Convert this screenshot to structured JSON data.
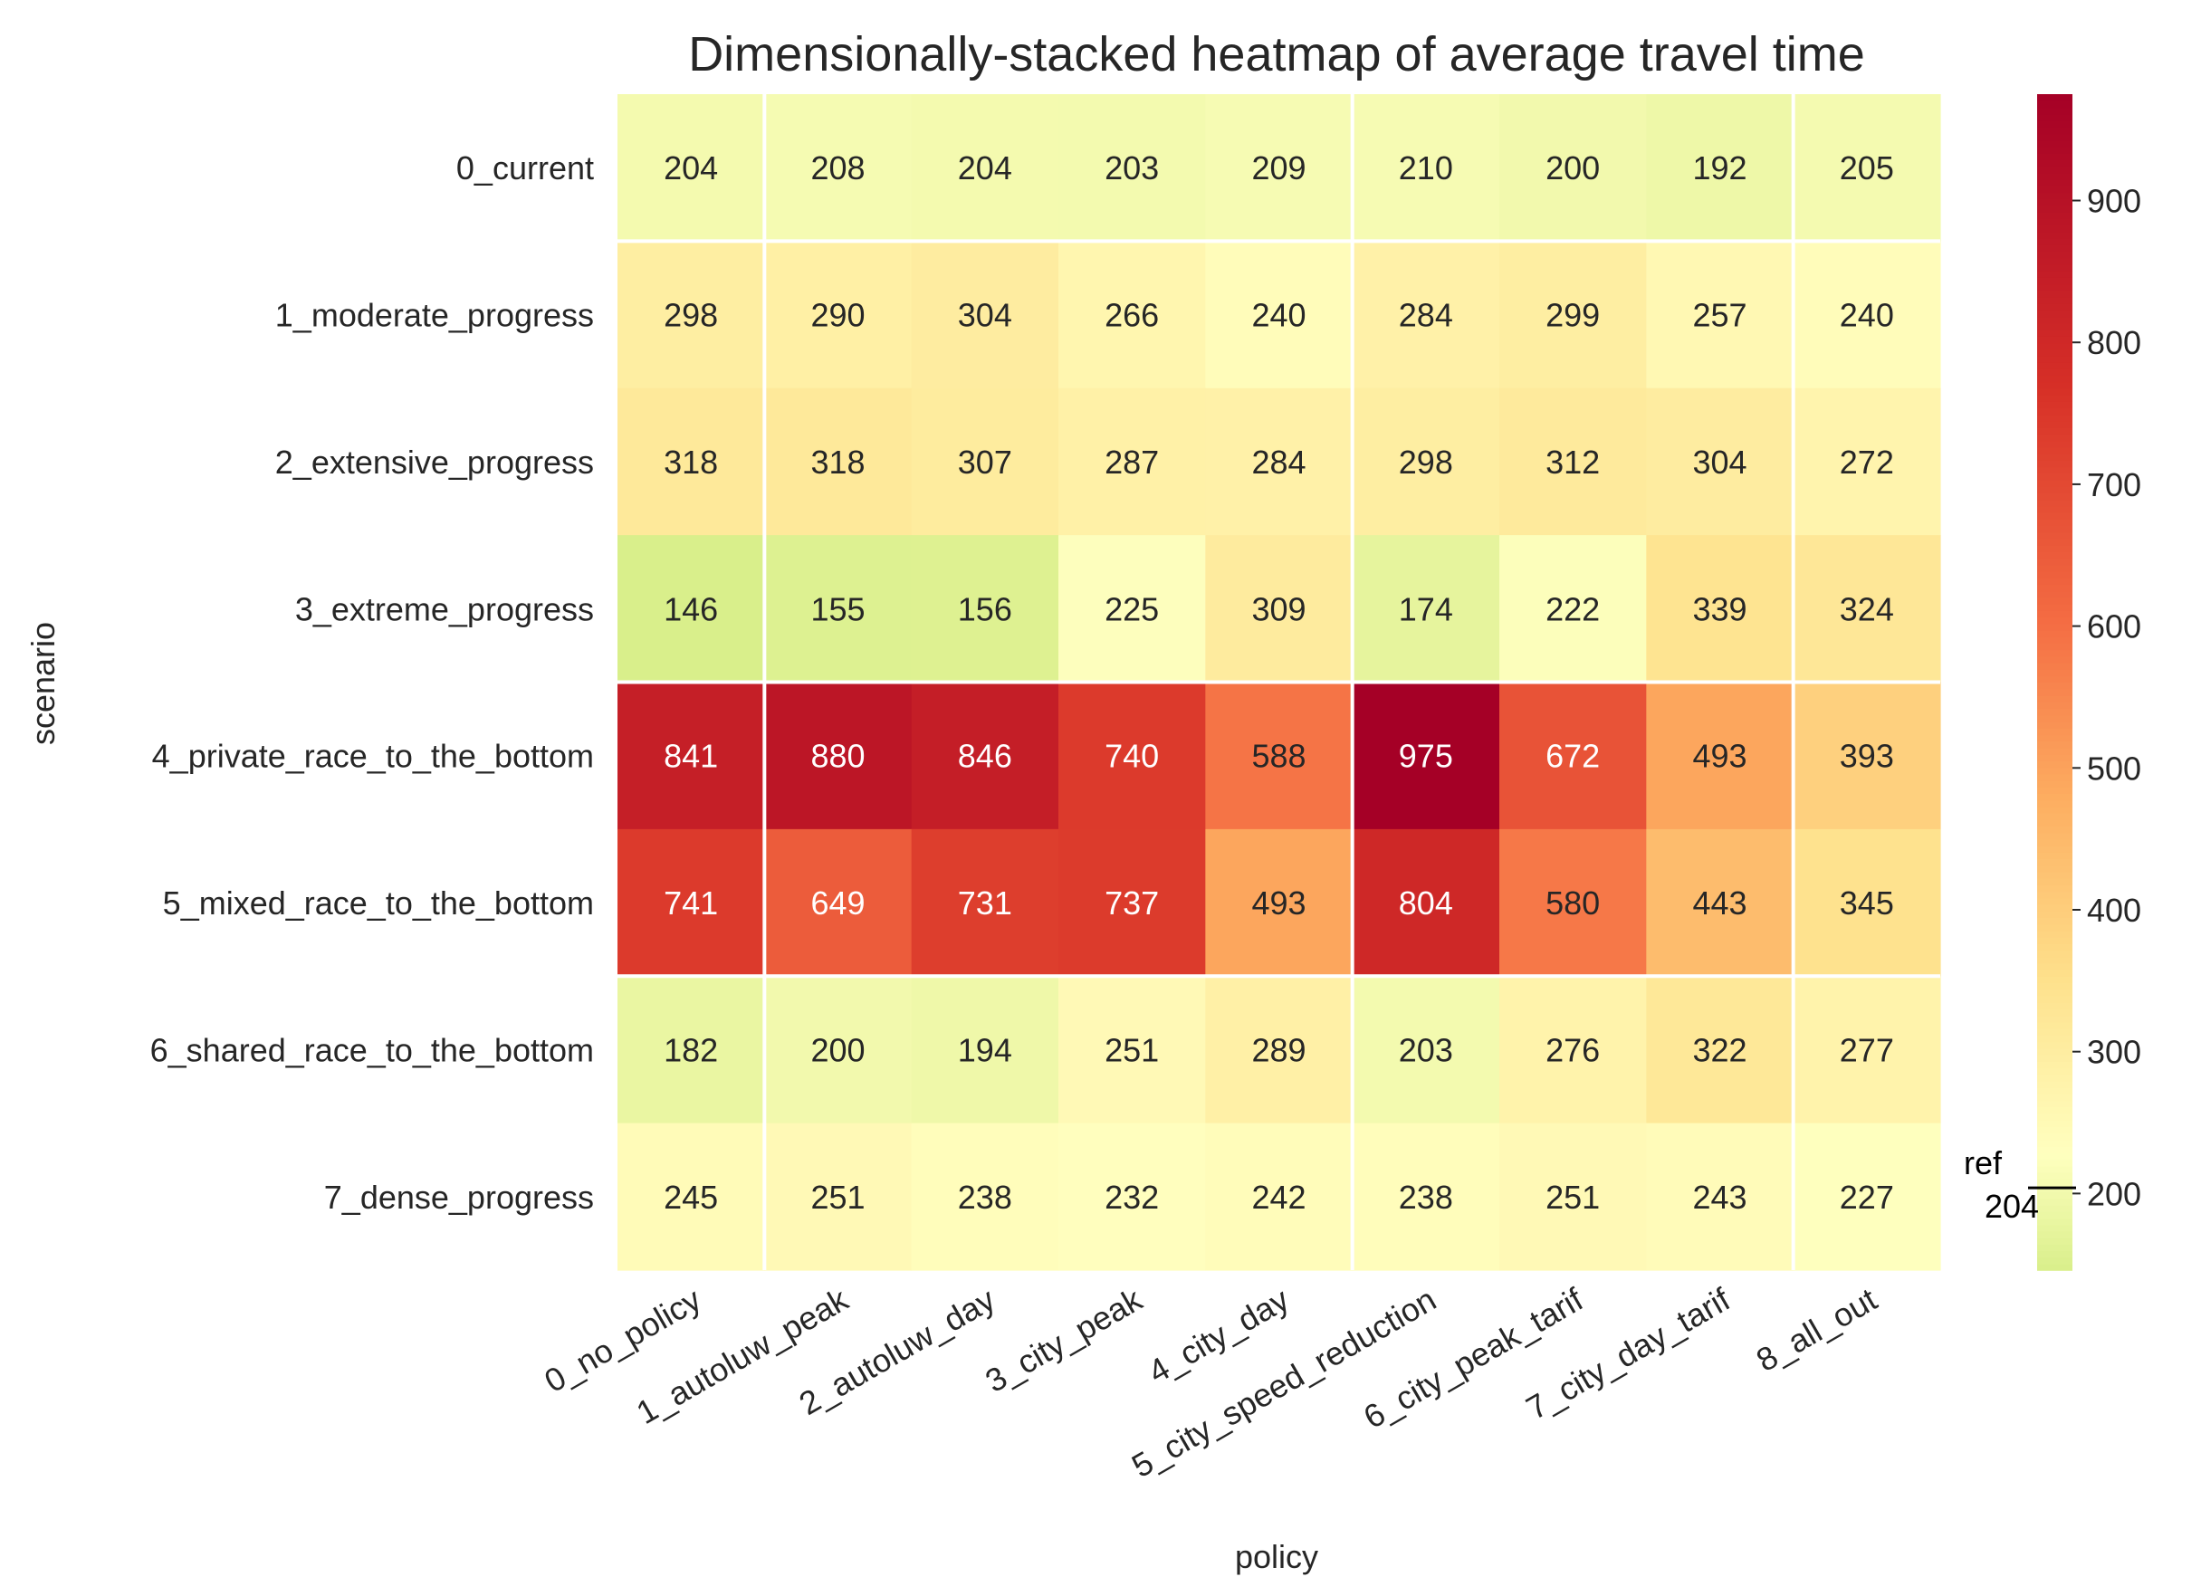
{
  "chart_data": {
    "type": "heatmap",
    "title": "Dimensionally-stacked heatmap of average travel time",
    "xlabel": "policy",
    "ylabel": "scenario",
    "x_categories": [
      "0_no_policy",
      "1_autoluw_peak",
      "2_autoluw_day",
      "3_city_peak",
      "4_city_day",
      "5_city_speed_reduction",
      "6_city_peak_tarif",
      "7_city_day_tarif",
      "8_all_out"
    ],
    "y_categories": [
      "0_current",
      "1_moderate_progress",
      "2_extensive_progress",
      "3_extreme_progress",
      "4_private_race_to_the_bottom",
      "5_mixed_race_to_the_bottom",
      "6_shared_race_to_the_bottom",
      "7_dense_progress"
    ],
    "values": [
      [
        204,
        208,
        204,
        203,
        209,
        210,
        200,
        192,
        205
      ],
      [
        298,
        290,
        304,
        266,
        240,
        284,
        299,
        257,
        240
      ],
      [
        318,
        318,
        307,
        287,
        284,
        298,
        312,
        304,
        272
      ],
      [
        146,
        155,
        156,
        225,
        309,
        174,
        222,
        339,
        324
      ],
      [
        841,
        880,
        846,
        740,
        588,
        975,
        672,
        493,
        393
      ],
      [
        741,
        649,
        731,
        737,
        493,
        804,
        580,
        443,
        345
      ],
      [
        182,
        200,
        194,
        251,
        289,
        203,
        276,
        322,
        277
      ],
      [
        245,
        251,
        238,
        232,
        242,
        238,
        251,
        243,
        227
      ]
    ],
    "colormap": "RdYlGn_r (yellow to red)",
    "color_range": [
      146,
      975
    ],
    "colorbar_ticks": [
      200,
      300,
      400,
      500,
      600,
      700,
      800,
      900
    ],
    "reference": {
      "label": "ref",
      "value": "204"
    },
    "separator_rows_after": [
      0,
      3,
      5
    ],
    "separator_cols_after": [
      0,
      4,
      7
    ],
    "separator_color": "#ffffff",
    "grid": false
  }
}
